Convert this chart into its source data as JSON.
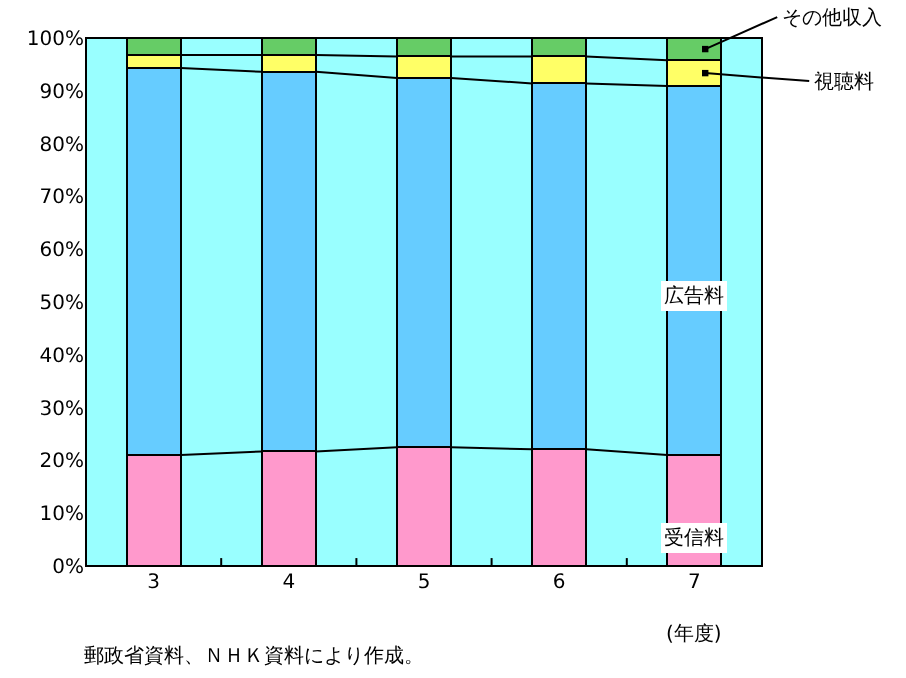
{
  "chart_data": {
    "type": "bar",
    "stacked": true,
    "categories": [
      "3",
      "4",
      "5",
      "6",
      "7"
    ],
    "xlabel": "(年度)",
    "series": [
      {
        "name": "受信料",
        "color": "#ff99cc",
        "values": [
          21,
          21.7,
          22.5,
          22.1,
          21
        ]
      },
      {
        "name": "広告料",
        "color": "#66ccff",
        "values": [
          73.3,
          71.9,
          69.9,
          69.3,
          69.9
        ]
      },
      {
        "name": "視聴料",
        "color": "#ffff66",
        "values": [
          2.5,
          3.2,
          4.1,
          5.1,
          4.9
        ]
      },
      {
        "name": "その他収入",
        "color": "#66cc66",
        "values": [
          3.2,
          3.2,
          3.5,
          3.5,
          4.2
        ]
      }
    ],
    "ylim": [
      0,
      100
    ],
    "yticks": [
      {
        "value": 0,
        "label": "0%"
      },
      {
        "value": 10,
        "label": "10%"
      },
      {
        "value": 20,
        "label": "20%"
      },
      {
        "value": 30,
        "label": "30%"
      },
      {
        "value": 40,
        "label": "40%"
      },
      {
        "value": 50,
        "label": "50%"
      },
      {
        "value": 60,
        "label": "60%"
      },
      {
        "value": 70,
        "label": "70%"
      },
      {
        "value": 80,
        "label": "80%"
      },
      {
        "value": 90,
        "label": "90%"
      },
      {
        "value": 100,
        "label": "100%"
      }
    ],
    "grid": false,
    "legend": false,
    "annotations": [
      "郵政省資料、ＮＨＫ資料により作成。"
    ]
  }
}
